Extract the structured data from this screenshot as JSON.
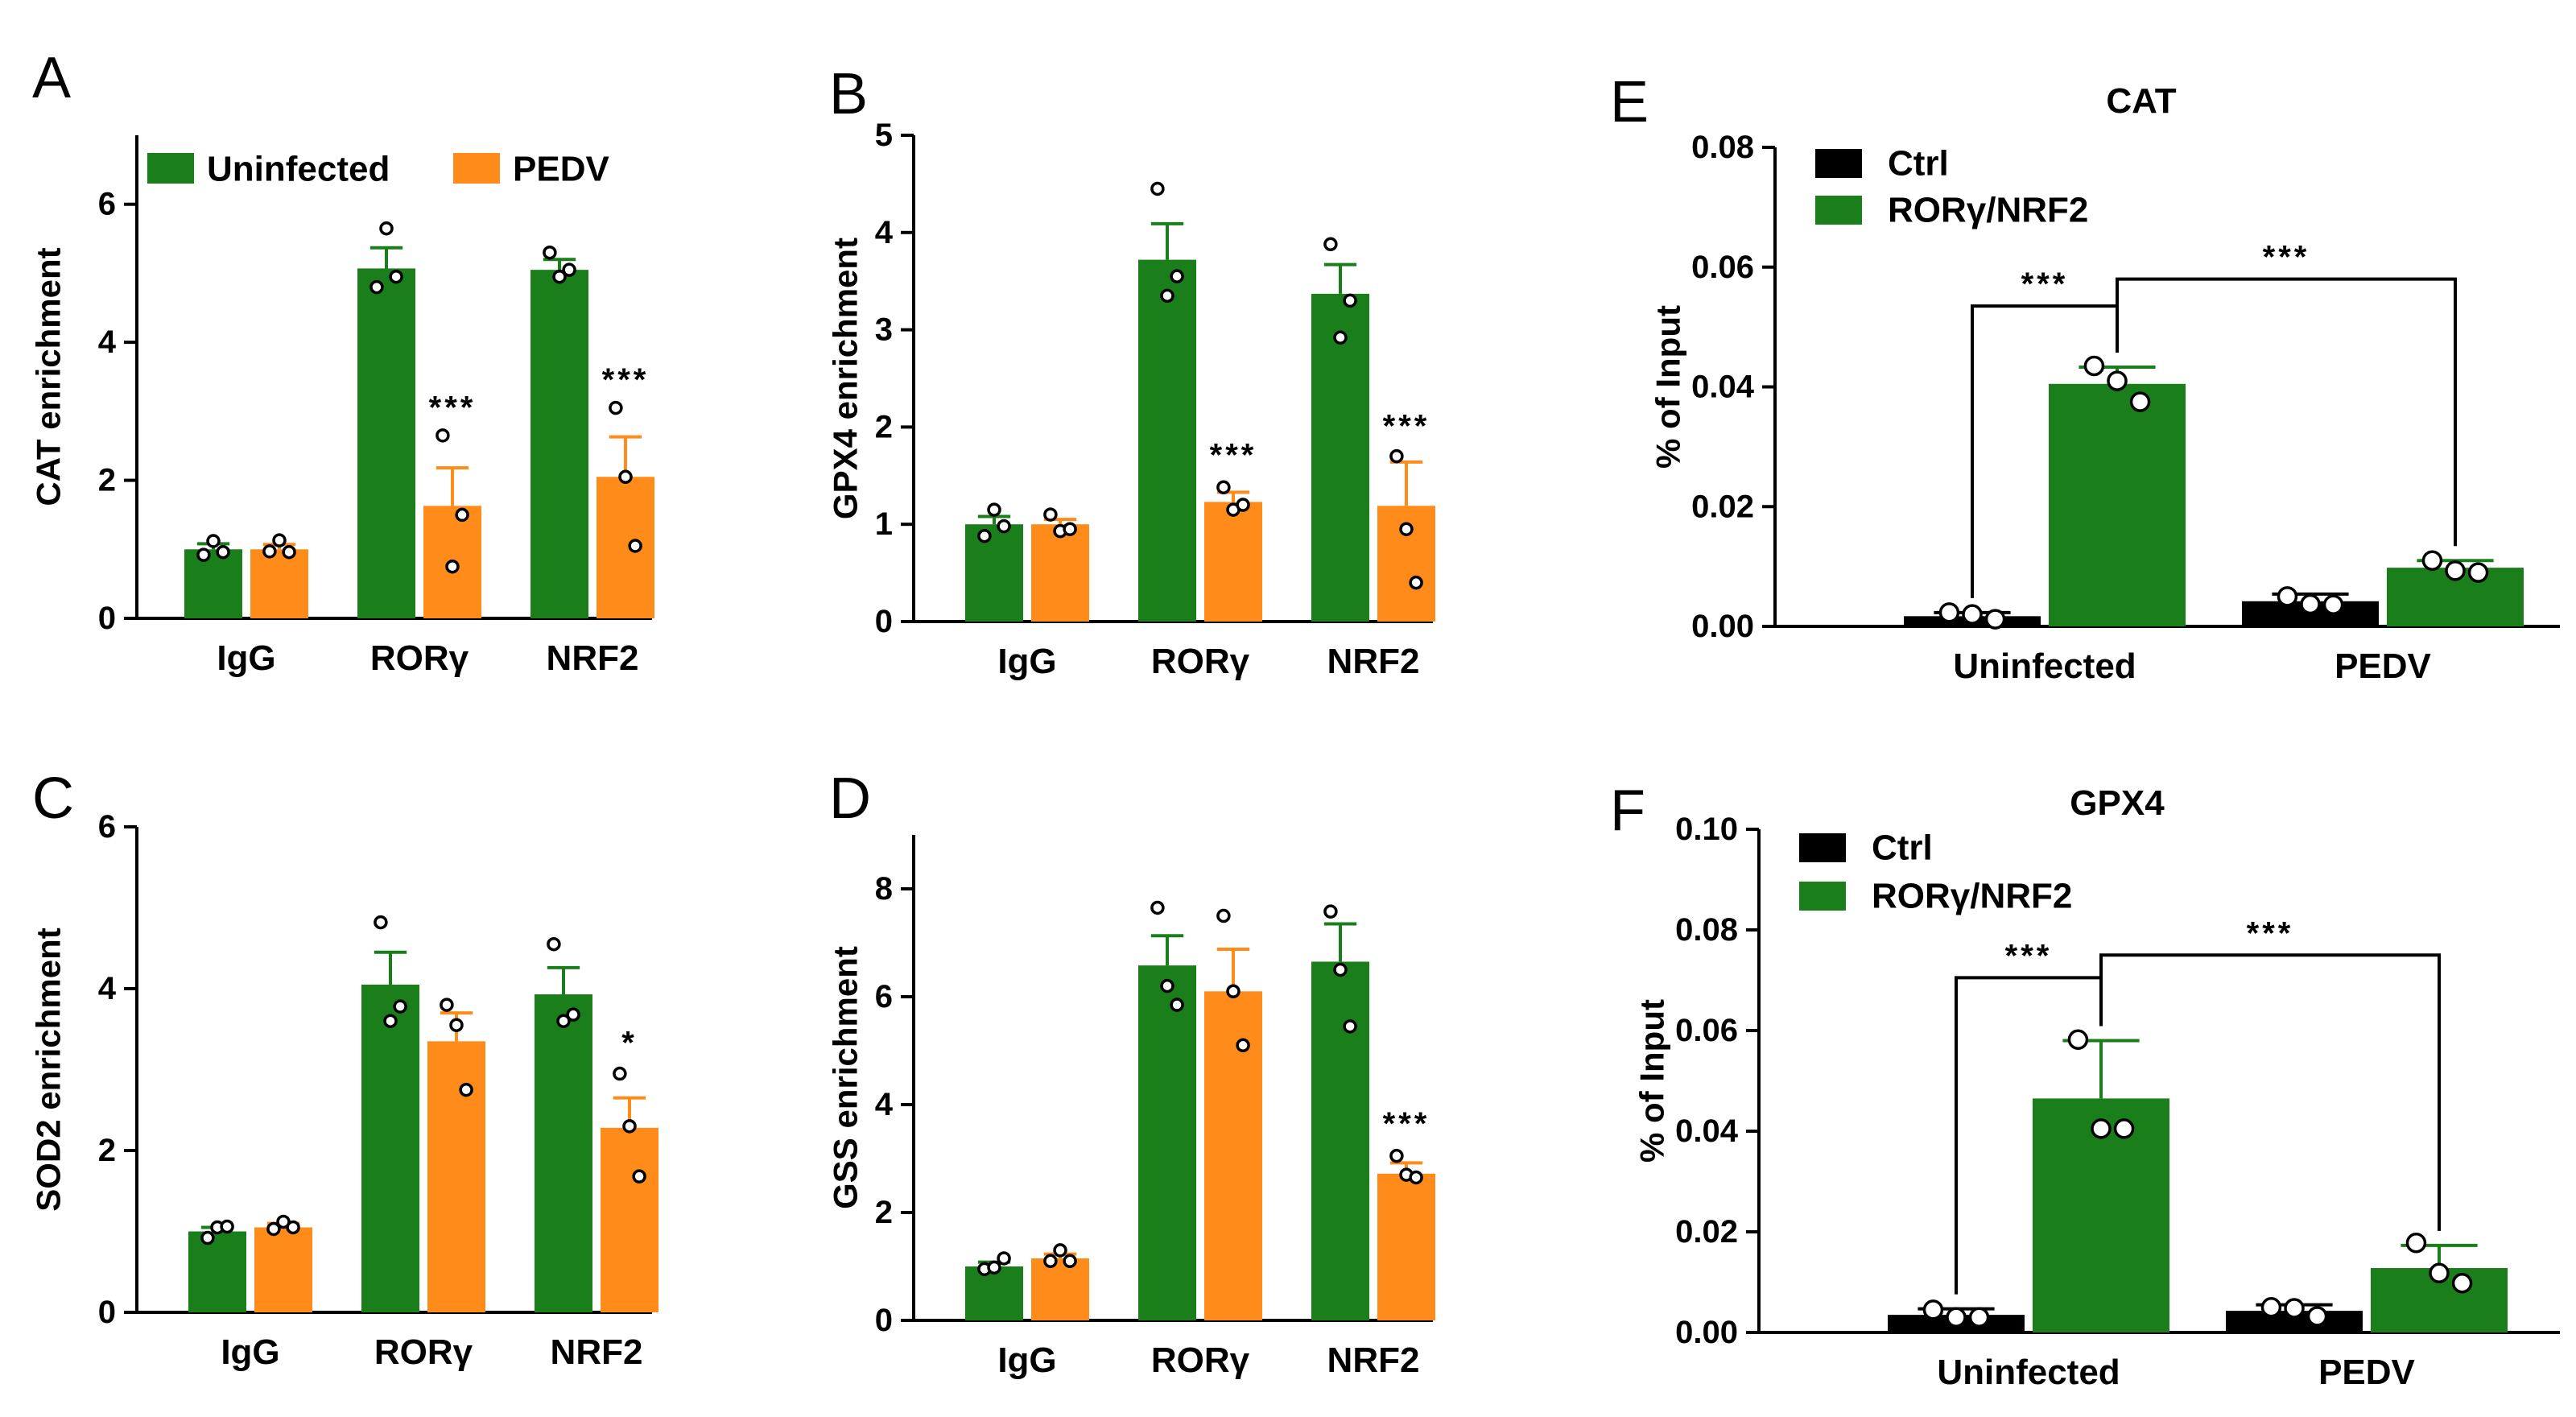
{
  "colors": {
    "uninfected": "#1a7f1a",
    "pedv": "#ff8c1a",
    "ctrl": "#000000",
    "rorg_nrf2": "#1a7f1a"
  },
  "chart_data": [
    {
      "panel": "A",
      "type": "bar",
      "ylabel": "CAT enrichment",
      "title": "",
      "categories": [
        "IgG",
        "RORγ",
        "NRF2"
      ],
      "ylim": [
        0,
        7
      ],
      "yticks": [
        0,
        2,
        4,
        6
      ],
      "legend": [
        "Uninfected",
        "PEDV"
      ],
      "legend_position": "top",
      "series": [
        {
          "name": "Uninfected",
          "color_key": "uninfected",
          "values": [
            1.0,
            5.07,
            5.05
          ],
          "errors": [
            0.08,
            0.3,
            0.15
          ],
          "points": [
            [
              0.92,
              1.12,
              0.96
            ],
            [
              4.8,
              5.65,
              4.95
            ],
            [
              5.3,
              4.95,
              5.05
            ]
          ]
        },
        {
          "name": "PEDV",
          "color_key": "pedv",
          "values": [
            1.0,
            1.63,
            2.05
          ],
          "errors": [
            0.07,
            0.55,
            0.58
          ],
          "points": [
            [
              0.97,
              1.13,
              0.96
            ],
            [
              2.65,
              0.75,
              1.5
            ],
            [
              3.05,
              2.05,
              1.05
            ]
          ]
        }
      ],
      "significance": [
        {
          "label": "***",
          "category": 1,
          "series": 1,
          "y": 2.9
        },
        {
          "label": "***",
          "category": 2,
          "series": 1,
          "y": 3.3
        }
      ]
    },
    {
      "panel": "B",
      "type": "bar",
      "ylabel": "GPX4 enrichment",
      "title": "",
      "categories": [
        "IgG",
        "RORγ",
        "NRF2"
      ],
      "ylim": [
        0,
        5
      ],
      "yticks": [
        0,
        1,
        2,
        3,
        4,
        5
      ],
      "series": [
        {
          "name": "Uninfected",
          "color_key": "uninfected",
          "values": [
            1.0,
            3.72,
            3.37
          ],
          "errors": [
            0.08,
            0.37,
            0.3
          ],
          "points": [
            [
              0.88,
              1.15,
              0.98
            ],
            [
              4.45,
              3.35,
              3.55
            ],
            [
              3.88,
              2.92,
              3.3
            ]
          ]
        },
        {
          "name": "PEDV",
          "color_key": "pedv",
          "values": [
            1.0,
            1.23,
            1.19
          ],
          "errors": [
            0.05,
            0.1,
            0.45
          ],
          "points": [
            [
              1.1,
              0.93,
              0.95
            ],
            [
              1.38,
              1.15,
              1.2
            ],
            [
              1.7,
              0.95,
              0.4
            ]
          ]
        }
      ],
      "significance": [
        {
          "label": "***",
          "category": 1,
          "series": 1,
          "y": 1.6
        },
        {
          "label": "***",
          "category": 2,
          "series": 1,
          "y": 1.9
        }
      ]
    },
    {
      "panel": "C",
      "type": "bar",
      "ylabel": "SOD2 enrichment",
      "title": "",
      "categories": [
        "IgG",
        "RORγ",
        "NRF2"
      ],
      "ylim": [
        0,
        6
      ],
      "yticks": [
        0,
        2,
        4,
        6
      ],
      "series": [
        {
          "name": "Uninfected",
          "color_key": "uninfected",
          "values": [
            1.0,
            4.05,
            3.93
          ],
          "errors": [
            0.05,
            0.4,
            0.33
          ],
          "points": [
            [
              0.92,
              1.05,
              1.06
            ],
            [
              4.82,
              3.6,
              3.78
            ],
            [
              4.55,
              3.6,
              3.68
            ]
          ]
        },
        {
          "name": "PEDV",
          "color_key": "pedv",
          "values": [
            1.05,
            3.35,
            2.28
          ],
          "errors": [
            0.05,
            0.35,
            0.37
          ],
          "points": [
            [
              1.03,
              1.12,
              1.05
            ],
            [
              3.8,
              3.55,
              2.75
            ],
            [
              2.95,
              2.3,
              1.68
            ]
          ]
        }
      ],
      "significance": [
        {
          "label": "*",
          "category": 2,
          "series": 1,
          "y": 3.2
        }
      ]
    },
    {
      "panel": "D",
      "type": "bar",
      "ylabel": "GSS enrichment",
      "title": "",
      "categories": [
        "IgG",
        "RORγ",
        "NRF2"
      ],
      "ylim": [
        0,
        9
      ],
      "yticks": [
        0,
        2,
        4,
        6,
        8
      ],
      "series": [
        {
          "name": "Uninfected",
          "color_key": "uninfected",
          "values": [
            1.0,
            6.58,
            6.65
          ],
          "errors": [
            0.08,
            0.55,
            0.7
          ],
          "points": [
            [
              0.95,
              0.98,
              1.15
            ],
            [
              7.65,
              6.2,
              5.85
            ],
            [
              7.58,
              6.5,
              5.45
            ]
          ]
        },
        {
          "name": "PEDV",
          "color_key": "pedv",
          "values": [
            1.15,
            6.1,
            2.72
          ],
          "errors": [
            0.08,
            0.78,
            0.2
          ],
          "points": [
            [
              1.1,
              1.3,
              1.1
            ],
            [
              7.5,
              6.1,
              5.1
            ],
            [
              3.05,
              2.7,
              2.65
            ]
          ]
        }
      ],
      "significance": [
        {
          "label": "***",
          "category": 2,
          "series": 1,
          "y": 3.45
        }
      ]
    },
    {
      "panel": "E",
      "type": "bar",
      "title": "CAT",
      "ylabel": "% of Input",
      "categories": [
        "Uninfected",
        "PEDV"
      ],
      "ylim": [
        0,
        0.08
      ],
      "yticks": [
        0,
        0.02,
        0.04,
        0.06,
        0.08
      ],
      "ytick_labels": [
        "0.00",
        "0.02",
        "0.04",
        "0.06",
        "0.08"
      ],
      "legend": [
        "Ctrl",
        "RORγ/NRF2"
      ],
      "legend_position": "top-left",
      "series": [
        {
          "name": "Ctrl",
          "color_key": "ctrl",
          "values": [
            0.0017,
            0.0042
          ],
          "errors": [
            0.0006,
            0.0012
          ],
          "points": [
            [
              0.0023,
              0.002,
              0.0012
            ],
            [
              0.005,
              0.0037,
              0.0036
            ]
          ]
        },
        {
          "name": "RORγ/NRF2",
          "color_key": "rorg_nrf2",
          "values": [
            0.0405,
            0.0098
          ],
          "errors": [
            0.0028,
            0.0012
          ],
          "points": [
            [
              0.0435,
              0.041,
              0.0375
            ],
            [
              0.011,
              0.0093,
              0.009
            ]
          ]
        }
      ],
      "brackets": [
        {
          "label": "***",
          "from": [
            0,
            0
          ],
          "to": [
            0,
            1
          ],
          "y": 0.0535
        },
        {
          "label": "***",
          "from": [
            0,
            1
          ],
          "to": [
            1,
            1
          ],
          "y": 0.058
        }
      ]
    },
    {
      "panel": "F",
      "type": "bar",
      "title": "GPX4",
      "ylabel": "% of Input",
      "categories": [
        "Uninfected",
        "PEDV"
      ],
      "ylim": [
        0,
        0.1
      ],
      "yticks": [
        0,
        0.02,
        0.04,
        0.06,
        0.08,
        0.1
      ],
      "ytick_labels": [
        "0.00",
        "0.02",
        "0.04",
        "0.06",
        "0.08",
        "0.10"
      ],
      "legend": [
        "Ctrl",
        "RORγ/NRF2"
      ],
      "legend_position": "top-left",
      "series": [
        {
          "name": "Ctrl",
          "color_key": "ctrl",
          "values": [
            0.0035,
            0.0043
          ],
          "errors": [
            0.0012,
            0.0012
          ],
          "points": [
            [
              0.0045,
              0.003,
              0.003
            ],
            [
              0.005,
              0.0048,
              0.0032
            ]
          ]
        },
        {
          "name": "RORγ/NRF2",
          "color_key": "rorg_nrf2",
          "values": [
            0.0465,
            0.0128
          ],
          "errors": [
            0.0115,
            0.0045
          ],
          "points": [
            [
              0.0582,
              0.0405,
              0.0405
            ],
            [
              0.0178,
              0.0118,
              0.0098
            ]
          ]
        }
      ],
      "brackets": [
        {
          "label": "***",
          "from": [
            0,
            0
          ],
          "to": [
            0,
            1
          ],
          "y": 0.0705
        },
        {
          "label": "***",
          "from": [
            0,
            1
          ],
          "to": [
            1,
            1
          ],
          "y": 0.075
        }
      ]
    }
  ]
}
